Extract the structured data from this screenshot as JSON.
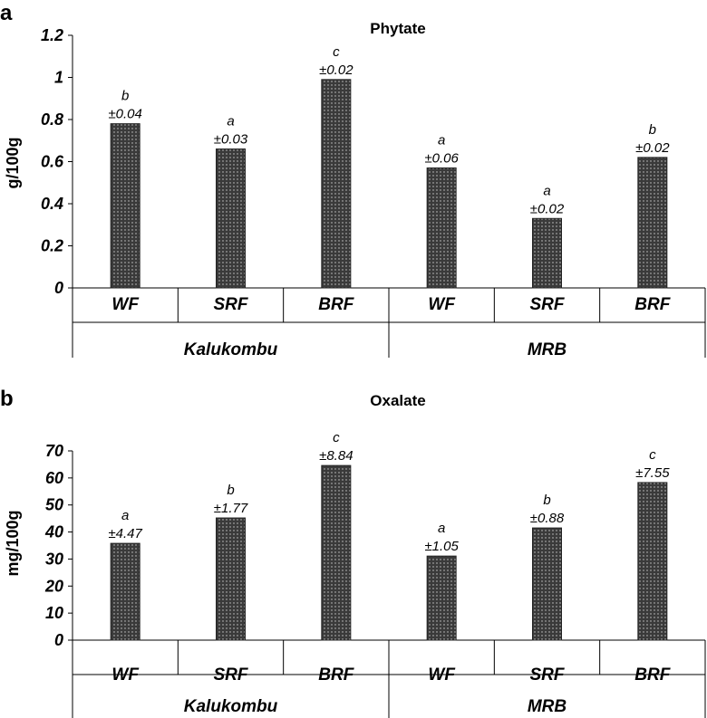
{
  "chart_data": [
    {
      "type": "bar",
      "panel": "a",
      "title": "Phytate",
      "ylabel": "g/100g",
      "ylim": [
        0,
        1.2
      ],
      "yticks": [
        "0",
        "0.2",
        "0.4",
        "0.6",
        "0.8",
        "1",
        "1.2"
      ],
      "categories": [
        "WF",
        "SRF",
        "BRF",
        "WF",
        "SRF",
        "BRF"
      ],
      "groups": [
        "Kalukombu",
        "MRB"
      ],
      "values": [
        0.78,
        0.66,
        0.99,
        0.57,
        0.33,
        0.62
      ],
      "errors": [
        "±0.04",
        "±0.03",
        "±0.02",
        "±0.06",
        "±0.02",
        "±0.02"
      ],
      "letters": [
        "b",
        "a",
        "c",
        "a",
        "a",
        "b"
      ]
    },
    {
      "type": "bar",
      "panel": "b",
      "title": "Oxalate",
      "ylabel": "mg/100g",
      "ylim": [
        0,
        70
      ],
      "yticks": [
        "0",
        "10",
        "20",
        "30",
        "40",
        "50",
        "60",
        "70"
      ],
      "categories": [
        "WF",
        "SRF",
        "BRF",
        "WF",
        "SRF",
        "BRF"
      ],
      "groups": [
        "Kalukombu",
        "MRB"
      ],
      "values": [
        35.8,
        45.2,
        64.6,
        31.1,
        41.5,
        58.3
      ],
      "errors": [
        "±4.47",
        "±1.77",
        "±8.84",
        "±1.05",
        "±0.88",
        "±7.55"
      ],
      "letters": [
        "a",
        "b",
        "c",
        "a",
        "b",
        "c"
      ]
    }
  ],
  "bar_color": "#3a3a3a"
}
